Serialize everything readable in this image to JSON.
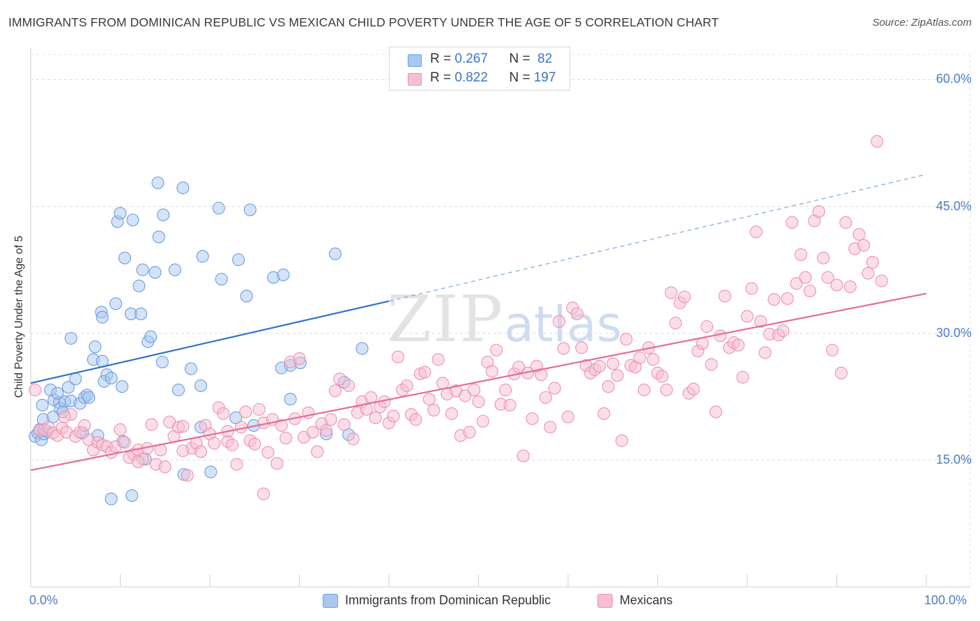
{
  "title": "IMMIGRANTS FROM DOMINICAN REPUBLIC VS MEXICAN CHILD POVERTY UNDER THE AGE OF 5 CORRELATION CHART",
  "source": "Source: ZipAtlas.com",
  "watermark": {
    "zip": "ZIP",
    "atlas": "atlas"
  },
  "stats": [
    {
      "r_label": "R = ",
      "r_value": "0.267",
      "n_label": "N = ",
      "n_value": " 82",
      "color": "#aac8ef",
      "stroke": "#6b9ee0"
    },
    {
      "r_label": "R = ",
      "r_value": "0.822",
      "n_label": "N = ",
      "n_value": "197",
      "color": "#f7bfd1",
      "stroke": "#ef8fb0"
    }
  ],
  "legend": [
    {
      "label": "Immigrants from Dominican Republic",
      "color": "#aac8ef",
      "stroke": "#6b9ee0"
    },
    {
      "label": "Mexicans",
      "color": "#f7bfd1",
      "stroke": "#ef8fb0"
    }
  ],
  "chart_data": {
    "type": "scatter",
    "title": "IMMIGRANTS FROM DOMINICAN REPUBLIC VS MEXICAN CHILD POVERTY UNDER THE AGE OF 5 CORRELATION CHART",
    "xlabel": "",
    "ylabel": "Child Poverty Under the Age of 5",
    "xlim": [
      0,
      100
    ],
    "ylim": [
      0,
      63
    ],
    "x_tick_labels": [
      "0.0%",
      "100.0%"
    ],
    "y_ticks": [
      15,
      30,
      45,
      60
    ],
    "y_tick_labels": [
      "15.0%",
      "30.0%",
      "45.0%",
      "60.0%"
    ],
    "grid": true,
    "legend_position": "bottom",
    "series": [
      {
        "name": "Immigrants from Dominican Republic",
        "color": "#6b9ee0",
        "fill": "#aac8ef",
        "trend": {
          "x": [
            0,
            40
          ],
          "y": [
            24.1,
            33.8
          ],
          "extended_to": [
            100,
            48.8
          ]
        },
        "points": [
          [
            0.5,
            17.8
          ],
          [
            0.8,
            18.2
          ],
          [
            1.0,
            18.6
          ],
          [
            1.2,
            17.4
          ],
          [
            1.4,
            19.8
          ],
          [
            1.5,
            18.1
          ],
          [
            1.3,
            21.5
          ],
          [
            2.2,
            23.3
          ],
          [
            2.6,
            22.1
          ],
          [
            3.2,
            21.8
          ],
          [
            3.3,
            21.1
          ],
          [
            3.0,
            22.9
          ],
          [
            3.8,
            21.9
          ],
          [
            4.2,
            23.6
          ],
          [
            4.5,
            22.0
          ],
          [
            5.0,
            24.6
          ],
          [
            5.5,
            21.7
          ],
          [
            6.0,
            22.4
          ],
          [
            6.3,
            22.7
          ],
          [
            6.5,
            22.4
          ],
          [
            4.5,
            29.4
          ],
          [
            7.2,
            28.4
          ],
          [
            7.0,
            26.9
          ],
          [
            8.0,
            26.7
          ],
          [
            8.5,
            25.1
          ],
          [
            8.2,
            24.3
          ],
          [
            7.9,
            32.5
          ],
          [
            8.0,
            31.9
          ],
          [
            9.5,
            33.5
          ],
          [
            9.0,
            24.7
          ],
          [
            10.2,
            23.7
          ],
          [
            9.7,
            43.2
          ],
          [
            10.0,
            44.2
          ],
          [
            10.5,
            38.9
          ],
          [
            11.4,
            43.4
          ],
          [
            11.2,
            32.3
          ],
          [
            12.1,
            35.6
          ],
          [
            12.3,
            32.3
          ],
          [
            12.5,
            37.5
          ],
          [
            13.1,
            29.0
          ],
          [
            13.4,
            29.6
          ],
          [
            13.9,
            37.2
          ],
          [
            14.3,
            41.4
          ],
          [
            14.7,
            26.6
          ],
          [
            14.2,
            47.8
          ],
          [
            14.8,
            44.0
          ],
          [
            16.1,
            37.5
          ],
          [
            16.5,
            23.3
          ],
          [
            17.0,
            47.2
          ],
          [
            17.9,
            25.8
          ],
          [
            19.0,
            23.8
          ],
          [
            19.2,
            39.1
          ],
          [
            21.0,
            44.8
          ],
          [
            21.3,
            36.4
          ],
          [
            23.2,
            38.7
          ],
          [
            24.5,
            44.6
          ],
          [
            24.9,
            19.1
          ],
          [
            24.1,
            34.4
          ],
          [
            27.1,
            36.6
          ],
          [
            28.2,
            36.9
          ],
          [
            28.0,
            25.9
          ],
          [
            29.0,
            26.2
          ],
          [
            30.1,
            26.5
          ],
          [
            29.0,
            22.2
          ],
          [
            33.0,
            18.1
          ],
          [
            34.0,
            39.4
          ],
          [
            35.0,
            24.2
          ],
          [
            35.5,
            18.0
          ],
          [
            37.0,
            28.2
          ],
          [
            10.3,
            17.2
          ],
          [
            11.3,
            10.8
          ],
          [
            9.0,
            10.4
          ],
          [
            12.8,
            15.1
          ],
          [
            17.1,
            13.3
          ],
          [
            20.1,
            13.6
          ],
          [
            19.0,
            18.9
          ],
          [
            22.9,
            20.0
          ],
          [
            1.8,
            18.4
          ],
          [
            2.5,
            20.1
          ],
          [
            3.6,
            20.7
          ],
          [
            5.8,
            18.2
          ],
          [
            7.5,
            17.9
          ]
        ]
      },
      {
        "name": "Mexicans",
        "color": "#ef8fb0",
        "fill": "#f7bfd1",
        "trend": {
          "x": [
            0,
            100
          ],
          "y": [
            13.8,
            34.7
          ]
        },
        "points": [
          [
            0.5,
            23.3
          ],
          [
            1.0,
            18.5
          ],
          [
            1.5,
            18.6
          ],
          [
            2.0,
            18.9
          ],
          [
            2.5,
            18.2
          ],
          [
            3.0,
            17.9
          ],
          [
            3.5,
            18.8
          ],
          [
            4.0,
            18.3
          ],
          [
            4.5,
            20.4
          ],
          [
            5.0,
            17.8
          ],
          [
            5.5,
            18.3
          ],
          [
            6.0,
            19.1
          ],
          [
            6.5,
            17.4
          ],
          [
            7.0,
            16.2
          ],
          [
            7.5,
            17.1
          ],
          [
            8.0,
            16.8
          ],
          [
            8.5,
            16.6
          ],
          [
            9.0,
            15.9
          ],
          [
            9.5,
            16.6
          ],
          [
            10.0,
            18.6
          ],
          [
            10.5,
            17.1
          ],
          [
            11.0,
            15.3
          ],
          [
            11.5,
            15.7
          ],
          [
            12.0,
            16.2
          ],
          [
            12.5,
            15.1
          ],
          [
            13.0,
            16.4
          ],
          [
            13.5,
            19.2
          ],
          [
            14.0,
            14.5
          ],
          [
            14.5,
            16.2
          ],
          [
            15.0,
            14.2
          ],
          [
            15.5,
            19.5
          ],
          [
            16.0,
            17.8
          ],
          [
            16.5,
            18.9
          ],
          [
            17.0,
            19.0
          ],
          [
            17.5,
            13.2
          ],
          [
            18.0,
            16.4
          ],
          [
            18.5,
            17.0
          ],
          [
            19.0,
            16.0
          ],
          [
            19.5,
            19.1
          ],
          [
            20.0,
            18.1
          ],
          [
            20.5,
            17.0
          ],
          [
            21.0,
            21.2
          ],
          [
            21.5,
            20.5
          ],
          [
            22.0,
            17.2
          ],
          [
            22.5,
            16.8
          ],
          [
            23.0,
            14.5
          ],
          [
            23.5,
            18.9
          ],
          [
            24.0,
            20.7
          ],
          [
            24.5,
            17.3
          ],
          [
            25.0,
            16.9
          ],
          [
            25.5,
            21.0
          ],
          [
            26.0,
            19.4
          ],
          [
            26.5,
            15.9
          ],
          [
            27.0,
            19.8
          ],
          [
            27.5,
            14.6
          ],
          [
            28.0,
            19.1
          ],
          [
            28.5,
            17.6
          ],
          [
            29.0,
            26.6
          ],
          [
            29.5,
            19.9
          ],
          [
            30.0,
            27.0
          ],
          [
            30.5,
            17.7
          ],
          [
            31.0,
            20.6
          ],
          [
            31.5,
            18.3
          ],
          [
            32.0,
            16.0
          ],
          [
            32.5,
            19.3
          ],
          [
            33.0,
            18.5
          ],
          [
            33.5,
            19.8
          ],
          [
            34.0,
            23.2
          ],
          [
            34.5,
            24.6
          ],
          [
            35.0,
            19.2
          ],
          [
            35.5,
            23.8
          ],
          [
            36.0,
            17.5
          ],
          [
            36.5,
            20.6
          ],
          [
            37.0,
            21.9
          ],
          [
            37.5,
            21.0
          ],
          [
            38.0,
            22.4
          ],
          [
            38.5,
            20.0
          ],
          [
            39.0,
            21.3
          ],
          [
            39.5,
            21.9
          ],
          [
            40.0,
            19.4
          ],
          [
            40.5,
            20.2
          ],
          [
            41.0,
            27.2
          ],
          [
            41.5,
            23.3
          ],
          [
            42.0,
            23.8
          ],
          [
            42.5,
            20.4
          ],
          [
            43.0,
            19.8
          ],
          [
            43.5,
            25.2
          ],
          [
            44.0,
            25.4
          ],
          [
            44.5,
            22.2
          ],
          [
            45.0,
            20.9
          ],
          [
            45.5,
            26.9
          ],
          [
            46.0,
            24.1
          ],
          [
            46.5,
            22.8
          ],
          [
            47.0,
            20.5
          ],
          [
            47.5,
            23.2
          ],
          [
            48.0,
            17.9
          ],
          [
            48.5,
            22.6
          ],
          [
            49.0,
            18.3
          ],
          [
            49.5,
            23.3
          ],
          [
            50.0,
            21.9
          ],
          [
            50.5,
            19.6
          ],
          [
            51.0,
            26.6
          ],
          [
            51.5,
            25.5
          ],
          [
            52.0,
            28.0
          ],
          [
            52.5,
            21.6
          ],
          [
            53.0,
            23.3
          ],
          [
            53.5,
            21.5
          ],
          [
            54.0,
            25.2
          ],
          [
            54.5,
            26.0
          ],
          [
            55.0,
            15.5
          ],
          [
            55.5,
            25.3
          ],
          [
            56.0,
            19.9
          ],
          [
            56.5,
            26.1
          ],
          [
            57.0,
            25.1
          ],
          [
            57.5,
            22.4
          ],
          [
            58.0,
            18.9
          ],
          [
            58.5,
            23.5
          ],
          [
            59.0,
            31.4
          ],
          [
            59.5,
            28.2
          ],
          [
            60.0,
            20.1
          ],
          [
            60.5,
            33.0
          ],
          [
            61.0,
            32.3
          ],
          [
            61.5,
            28.3
          ],
          [
            62.0,
            26.2
          ],
          [
            62.5,
            25.3
          ],
          [
            63.0,
            25.7
          ],
          [
            63.5,
            26.1
          ],
          [
            64.0,
            20.5
          ],
          [
            64.5,
            23.7
          ],
          [
            65.0,
            26.4
          ],
          [
            65.5,
            25.0
          ],
          [
            66.0,
            17.3
          ],
          [
            66.5,
            29.3
          ],
          [
            67.0,
            26.2
          ],
          [
            67.5,
            26.0
          ],
          [
            68.0,
            27.1
          ],
          [
            68.5,
            23.3
          ],
          [
            69.0,
            28.3
          ],
          [
            69.5,
            26.9
          ],
          [
            70.0,
            25.3
          ],
          [
            70.5,
            24.9
          ],
          [
            71.0,
            23.3
          ],
          [
            71.5,
            34.8
          ],
          [
            72.0,
            31.2
          ],
          [
            72.5,
            33.6
          ],
          [
            73.0,
            34.3
          ],
          [
            73.5,
            22.9
          ],
          [
            74.0,
            23.4
          ],
          [
            74.5,
            27.9
          ],
          [
            75.0,
            28.8
          ],
          [
            75.5,
            30.8
          ],
          [
            76.0,
            26.3
          ],
          [
            76.5,
            20.7
          ],
          [
            77.0,
            29.7
          ],
          [
            77.5,
            34.4
          ],
          [
            78.0,
            28.3
          ],
          [
            78.5,
            28.9
          ],
          [
            79.0,
            28.6
          ],
          [
            79.5,
            24.8
          ],
          [
            80.0,
            32.0
          ],
          [
            80.5,
            35.3
          ],
          [
            81.0,
            42.0
          ],
          [
            81.5,
            31.4
          ],
          [
            82.0,
            27.7
          ],
          [
            82.5,
            29.9
          ],
          [
            83.0,
            34.0
          ],
          [
            83.5,
            29.8
          ],
          [
            84.0,
            30.3
          ],
          [
            84.5,
            34.1
          ],
          [
            85.0,
            43.1
          ],
          [
            85.5,
            35.9
          ],
          [
            86.0,
            39.3
          ],
          [
            86.5,
            36.6
          ],
          [
            87.0,
            35.0
          ],
          [
            87.5,
            43.3
          ],
          [
            88.0,
            44.4
          ],
          [
            88.5,
            38.9
          ],
          [
            89.0,
            36.6
          ],
          [
            89.5,
            28.0
          ],
          [
            90.0,
            35.7
          ],
          [
            90.5,
            25.3
          ],
          [
            91.0,
            43.1
          ],
          [
            91.5,
            35.5
          ],
          [
            92.0,
            40.0
          ],
          [
            92.5,
            41.7
          ],
          [
            93.0,
            40.4
          ],
          [
            93.5,
            37.1
          ],
          [
            94.0,
            38.4
          ],
          [
            94.5,
            52.7
          ],
          [
            95.0,
            36.2
          ],
          [
            26.0,
            11.0
          ],
          [
            3.8,
            20.1
          ],
          [
            12.0,
            14.8
          ],
          [
            17.0,
            16.1
          ],
          [
            22.0,
            18.4
          ]
        ]
      }
    ]
  }
}
